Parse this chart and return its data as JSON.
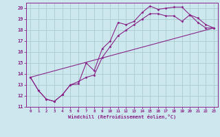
{
  "xlabel": "Windchill (Refroidissement éolien,°C)",
  "bg_color": "#cce8ee",
  "grid_color": "#aacccc",
  "line_color": "#882288",
  "xlim": [
    -0.5,
    23.5
  ],
  "ylim": [
    11,
    20.5
  ],
  "xticks": [
    0,
    1,
    2,
    3,
    4,
    5,
    6,
    7,
    8,
    9,
    10,
    11,
    12,
    13,
    14,
    15,
    16,
    17,
    18,
    19,
    20,
    21,
    22,
    23
  ],
  "yticks": [
    11,
    12,
    13,
    14,
    15,
    16,
    17,
    18,
    19,
    20
  ],
  "line1_x": [
    0,
    1,
    2,
    3,
    4,
    5,
    6,
    7,
    8,
    9,
    10,
    11,
    12,
    13,
    14,
    15,
    16,
    17,
    18,
    19,
    20,
    21,
    22,
    23
  ],
  "line1_y": [
    13.7,
    12.5,
    11.7,
    11.5,
    12.1,
    13.0,
    13.1,
    15.0,
    14.3,
    16.3,
    17.0,
    18.7,
    18.5,
    18.8,
    19.6,
    20.2,
    19.9,
    20.0,
    20.1,
    20.1,
    19.4,
    19.1,
    18.5,
    18.2
  ],
  "line2_x": [
    0,
    1,
    2,
    3,
    4,
    5,
    6,
    7,
    8,
    9,
    10,
    11,
    12,
    13,
    14,
    15,
    16,
    17,
    18,
    19,
    20,
    21,
    22,
    23
  ],
  "line2_y": [
    13.7,
    12.5,
    11.7,
    11.5,
    12.1,
    13.0,
    13.3,
    13.7,
    13.9,
    15.5,
    16.5,
    17.5,
    18.0,
    18.5,
    19.0,
    19.5,
    19.5,
    19.3,
    19.3,
    18.8,
    19.4,
    18.7,
    18.2,
    18.2
  ],
  "line3_x": [
    0,
    23
  ],
  "line3_y": [
    13.7,
    18.2
  ]
}
